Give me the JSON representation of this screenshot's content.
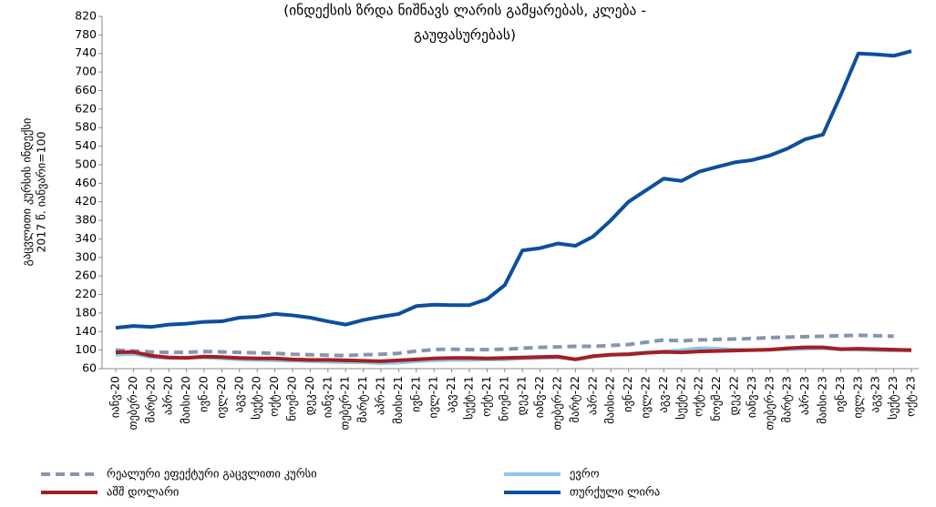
{
  "chart_data": {
    "type": "line",
    "title": [
      "(ინდექსის ზრდა ნიშნავს ლარის გამყარებას, კლება -",
      "გაუფასურებას)"
    ],
    "y_label": [
      "გაცვლითი კურსის ინდექსი",
      "2017 წ. იანვარი=100"
    ],
    "categories": [
      "იანვ-20",
      "თებერ-20",
      "მარტ-20",
      "აპრ-20",
      "მაისი-20",
      "ივნ-20",
      "ივლ-20",
      "აგვ-20",
      "სექტ-20",
      "ოქტ-20",
      "ნოემ-20",
      "დეკ-20",
      "იანვ-21",
      "თებერ-21",
      "მარტ-21",
      "აპრ-21",
      "მაისი-21",
      "ივნ-21",
      "ივლ-21",
      "აგვ-21",
      "სექტ-21",
      "ოქტ-21",
      "ნოემ-21",
      "დეკ-21",
      "იანვ-22",
      "თებერ-22",
      "მარტ-22",
      "აპრ-22",
      "მაისი-22",
      "ივნ-22",
      "ივლ-22",
      "აგვ-22",
      "სექტ-22",
      "ოქტ-22",
      "ნოემ-22",
      "დეკ-22",
      "იანვ-23",
      "თებერ-23",
      "მარტ-23",
      "აპრ-23",
      "მაისი-23",
      "ივნ-23",
      "ივლ-23",
      "აგვ-23",
      "სექტ-23",
      "ოქტ-23"
    ],
    "series": [
      {
        "name": "რეალური ეფექტური გაცვლითი კურსი",
        "color": "#8496b0",
        "dashed": true,
        "values": [
          100,
          98,
          96,
          95,
          95,
          97,
          96,
          95,
          94,
          93,
          91,
          90,
          89,
          88,
          90,
          91,
          93,
          98,
          101,
          102,
          101,
          101,
          102,
          104,
          106,
          107,
          108,
          108,
          110,
          112,
          117,
          122,
          120,
          122,
          123,
          124,
          125,
          127,
          128,
          129,
          130,
          131,
          132,
          131,
          130,
          null
        ]
      },
      {
        "name": "ევრო",
        "color": "#8fc6ea",
        "values": [
          90,
          92,
          85,
          83,
          84,
          84,
          82,
          80,
          79,
          78,
          77,
          76,
          75,
          74,
          74,
          72,
          73,
          76,
          78,
          79,
          79,
          80,
          80,
          82,
          83,
          84,
          80,
          86,
          90,
          92,
          95,
          97,
          100,
          104,
          103,
          101,
          100,
          101,
          102,
          103,
          104,
          102,
          101,
          100,
          99,
          99
        ]
      },
      {
        "name": "აშშ დოლარი",
        "color": "#a31f24",
        "values": [
          95,
          96,
          88,
          84,
          83,
          86,
          85,
          83,
          82,
          82,
          80,
          79,
          79,
          78,
          77,
          76,
          78,
          80,
          82,
          83,
          83,
          82,
          83,
          84,
          85,
          86,
          80,
          87,
          90,
          91,
          94,
          96,
          95,
          97,
          98,
          99,
          100,
          101,
          104,
          106,
          106,
          102,
          103,
          102,
          101,
          100
        ]
      },
      {
        "name": "თურქული ლირა",
        "color": "#0d4f9c",
        "values": [
          148,
          152,
          150,
          155,
          157,
          161,
          162,
          170,
          172,
          178,
          175,
          170,
          162,
          155,
          165,
          172,
          178,
          195,
          198,
          197,
          197,
          210,
          240,
          315,
          320,
          330,
          325,
          345,
          380,
          420,
          445,
          470,
          465,
          485,
          495,
          505,
          510,
          520,
          535,
          555,
          565,
          650,
          740,
          738,
          735,
          745
        ]
      }
    ],
    "ylim": [
      60,
      820
    ],
    "yticks": [
      60,
      100,
      140,
      180,
      220,
      260,
      300,
      340,
      380,
      420,
      460,
      500,
      540,
      580,
      620,
      660,
      700,
      740,
      780,
      820
    ]
  }
}
